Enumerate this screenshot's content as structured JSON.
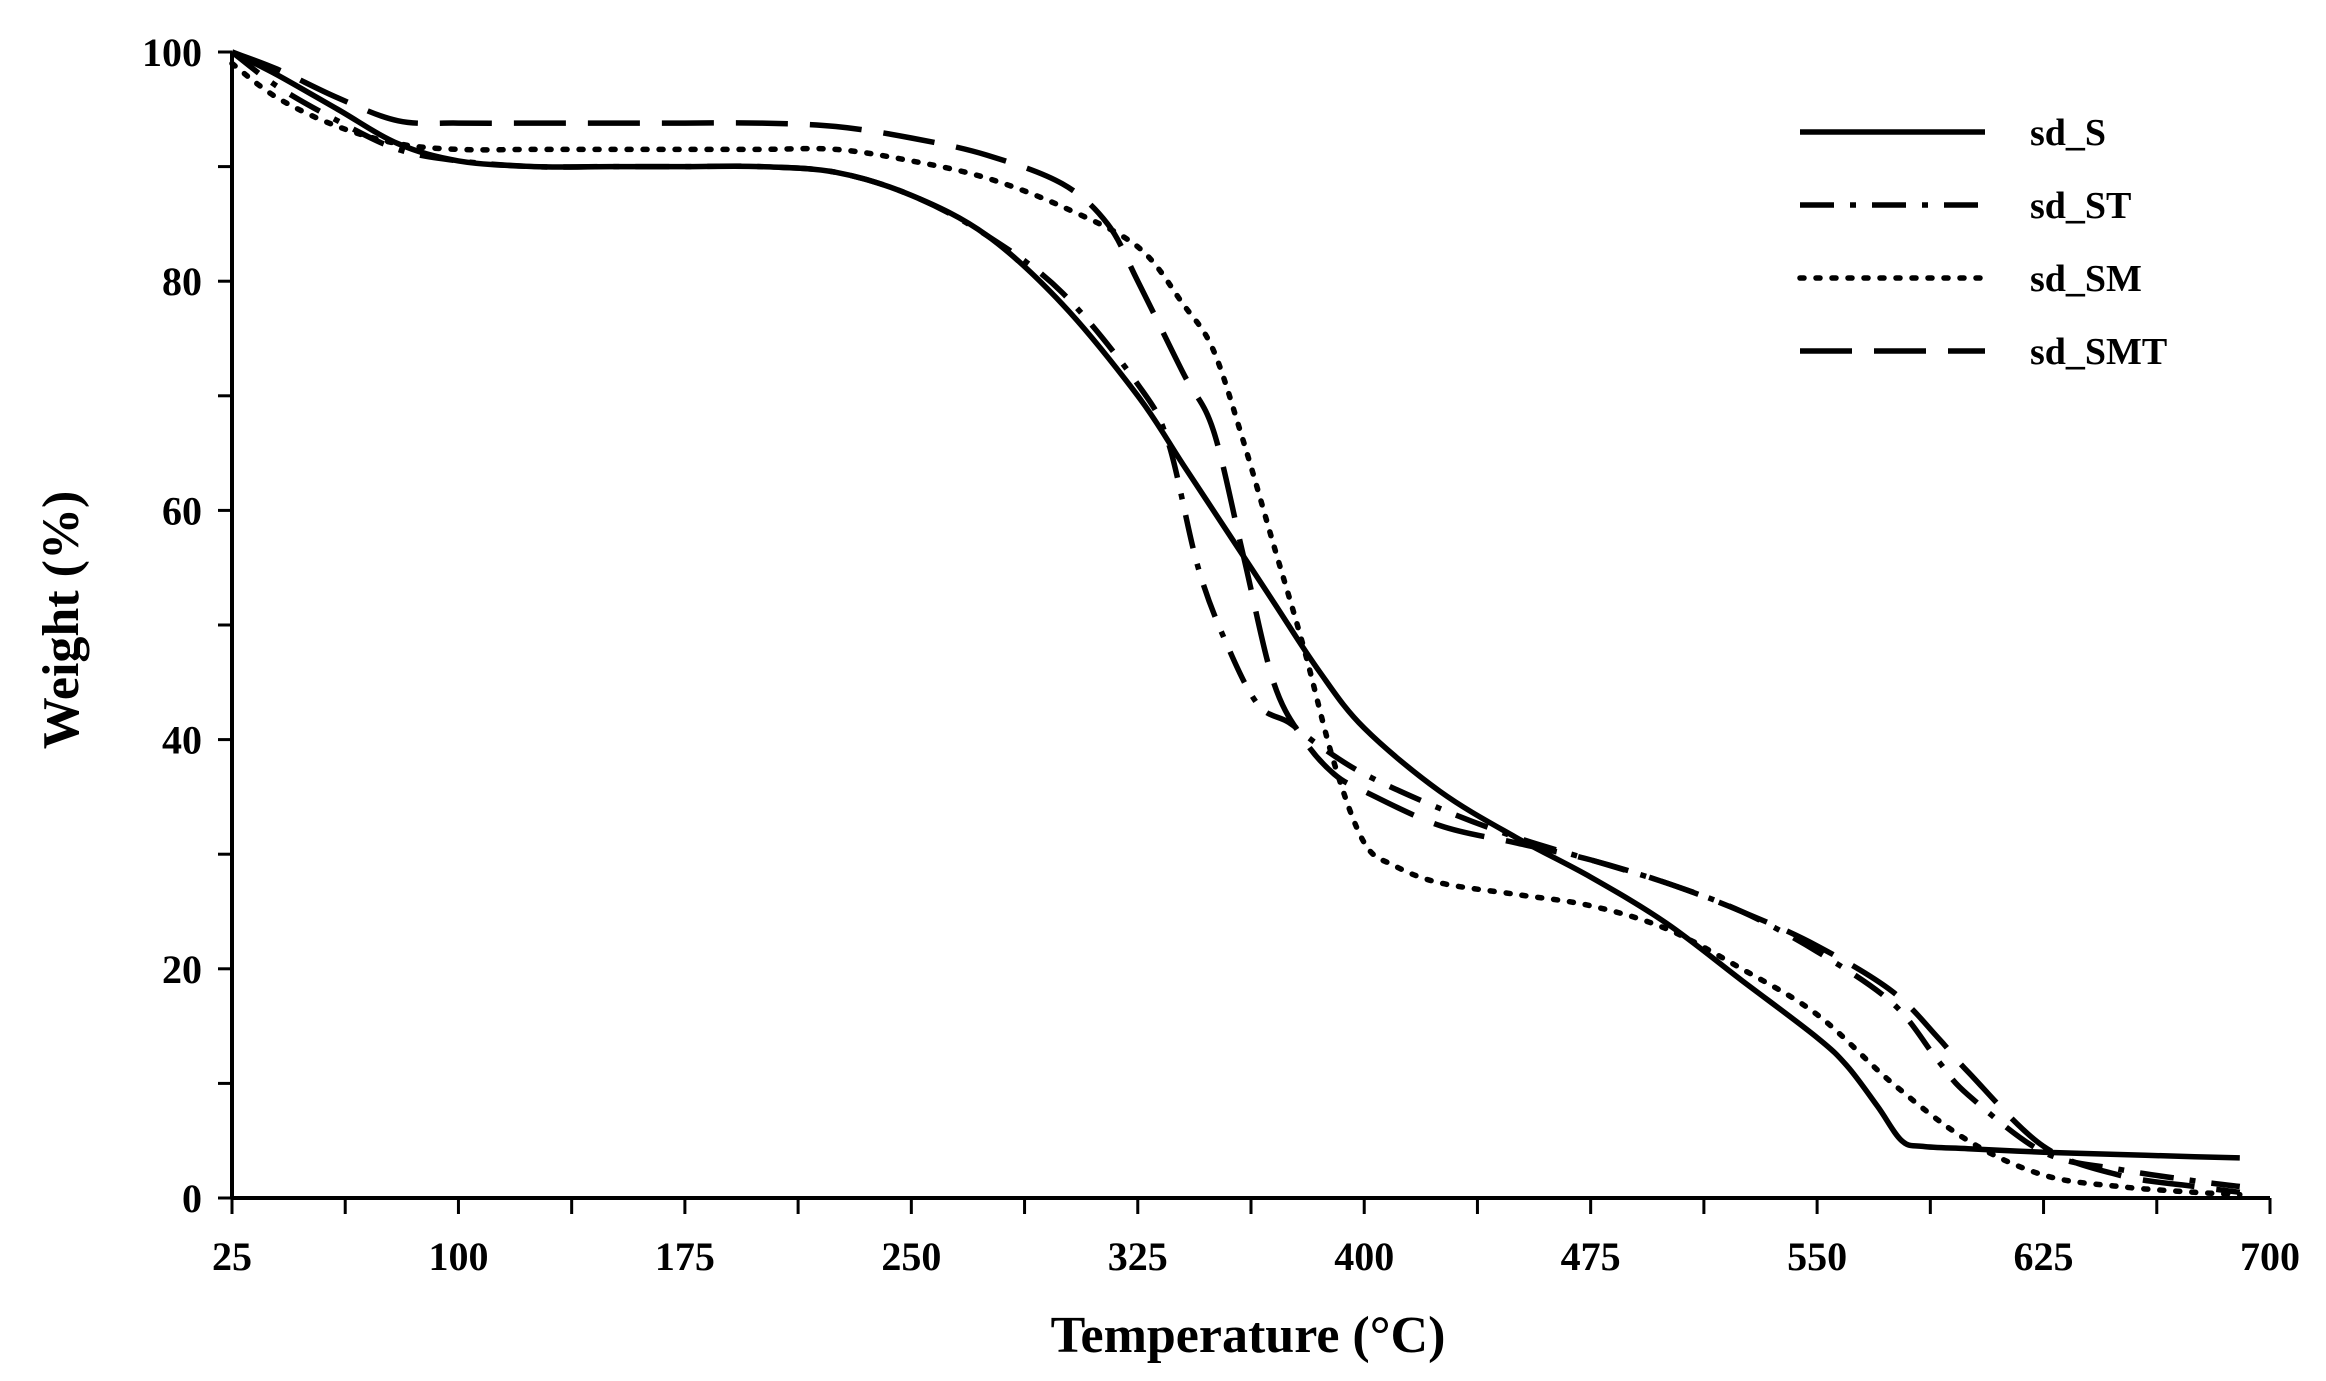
{
  "chart_data": {
    "type": "line",
    "title": "",
    "xlabel": "Temperature (°C)",
    "ylabel": "Weight (%)",
    "xlim": [
      25,
      700
    ],
    "ylim": [
      0,
      100
    ],
    "xticks": [
      "25",
      "100",
      "175",
      "250",
      "325",
      "400",
      "475",
      "550",
      "625",
      "700"
    ],
    "yticks": [
      "0",
      "20",
      "40",
      "60",
      "80",
      "100"
    ],
    "grid": false,
    "legend_position": "top-right",
    "series": [
      {
        "name": "sd_S",
        "style": "solid",
        "x": [
          25,
          40,
          60,
          80,
          100,
          125,
          150,
          175,
          200,
          225,
          250,
          275,
          300,
          325,
          340,
          355,
          370,
          385,
          400,
          425,
          450,
          475,
          500,
          525,
          550,
          560,
          570,
          578,
          585,
          600,
          625,
          650,
          675,
          690
        ],
        "y": [
          100,
          98,
          95,
          92,
          90.5,
          90,
          90,
          90,
          90,
          89.5,
          87.5,
          84,
          78,
          70,
          64,
          58,
          52,
          46,
          41,
          35.5,
          31.5,
          28,
          24,
          19,
          14,
          11.5,
          8,
          5,
          4.5,
          4.3,
          4,
          3.8,
          3.6,
          3.5
        ]
      },
      {
        "name": "sd_ST",
        "style": "dash-dot",
        "x": [
          25,
          40,
          60,
          80,
          100,
          125,
          150,
          175,
          200,
          225,
          250,
          275,
          300,
          325,
          335,
          345,
          355,
          365,
          375,
          385,
          400,
          425,
          450,
          475,
          500,
          525,
          550,
          575,
          590,
          600,
          625,
          650,
          675,
          690
        ],
        "y": [
          100,
          97,
          94,
          91.5,
          90.5,
          90,
          90,
          90,
          90,
          89.5,
          87.5,
          84,
          79,
          71,
          66,
          55,
          48,
          43,
          41.5,
          39.5,
          37,
          34,
          31.5,
          29.5,
          27.5,
          25,
          21.5,
          17,
          12,
          9,
          4,
          2.5,
          1.5,
          1
        ]
      },
      {
        "name": "sd_SM",
        "style": "dotted",
        "x": [
          25,
          40,
          60,
          80,
          100,
          125,
          150,
          175,
          200,
          225,
          250,
          275,
          300,
          325,
          340,
          350,
          360,
          370,
          380,
          390,
          400,
          410,
          425,
          450,
          475,
          500,
          525,
          550,
          575,
          600,
          625,
          650,
          675,
          690
        ],
        "y": [
          99,
          96,
          93.5,
          92,
          91.5,
          91.5,
          91.5,
          91.5,
          91.5,
          91.5,
          90.5,
          89,
          86.5,
          83,
          78,
          74,
          66,
          57,
          48,
          38,
          31,
          29,
          27.5,
          26.5,
          25.5,
          23.5,
          20,
          16,
          10,
          5,
          2,
          1,
          0.5,
          0.3
        ]
      },
      {
        "name": "sd_SMT",
        "style": "long-dash",
        "x": [
          25,
          40,
          60,
          80,
          100,
          125,
          150,
          175,
          200,
          225,
          250,
          275,
          300,
          315,
          325,
          340,
          350,
          360,
          370,
          380,
          390,
          400,
          425,
          450,
          475,
          500,
          525,
          550,
          575,
          590,
          600,
          625,
          650,
          675,
          690
        ],
        "y": [
          100,
          98.5,
          96,
          94,
          93.8,
          93.8,
          93.8,
          93.8,
          93.8,
          93.5,
          92.5,
          91,
          88.5,
          85,
          80,
          72,
          67,
          56,
          45,
          40,
          37,
          35.5,
          32.5,
          31,
          29.5,
          27.5,
          25,
          22,
          18,
          14,
          11,
          4.5,
          2,
          1,
          0.5
        ]
      }
    ]
  }
}
